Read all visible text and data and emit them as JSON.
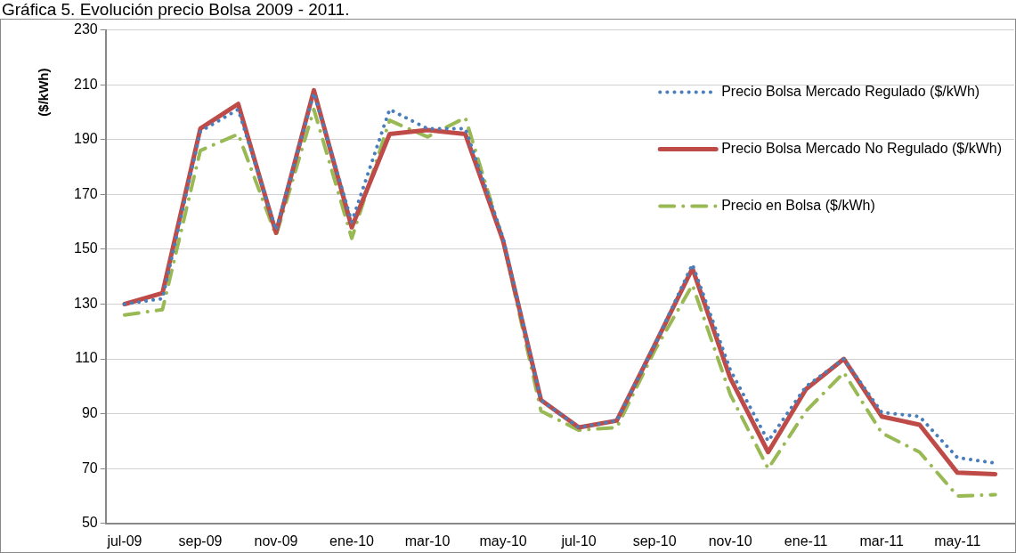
{
  "chart_data": {
    "type": "line",
    "title": "Gráfica 5. Evolución precio Bolsa 2009 - 2011.",
    "ylabel": "($/kWh)",
    "categories": [
      "jul-09",
      null,
      "sep-09",
      null,
      "nov-09",
      null,
      "ene-10",
      null,
      "mar-10",
      null,
      "may-10",
      null,
      "jul-10",
      null,
      "sep-10",
      null,
      "nov-10",
      null,
      "ene-11",
      null,
      "mar-11",
      null,
      "may-11",
      null
    ],
    "series": [
      {
        "name": "Precio Bolsa Mercado Regulado ($/kWh)",
        "color": "#4a7ebb",
        "line_style": "dotted",
        "values": [
          130,
          132,
          193,
          201,
          157,
          207,
          160,
          201,
          194,
          194,
          154,
          95,
          85,
          87.5,
          115,
          144.5,
          106,
          80,
          100,
          110,
          90.5,
          89,
          74,
          72
        ]
      },
      {
        "name": "Precio Bolsa Mercado No Regulado ($/kWh)",
        "color": "#be4b48",
        "line_style": "solid",
        "values": [
          130,
          134,
          194,
          203,
          156,
          208,
          158,
          192,
          193.5,
          192,
          153,
          95,
          85,
          87.5,
          115,
          143,
          103,
          76,
          99,
          110,
          89,
          86,
          68.5,
          68
        ]
      },
      {
        "name": "Precio en Bolsa ($/kWh)",
        "color": "#98b954",
        "line_style": "dashdot",
        "values": [
          126,
          128,
          186,
          192,
          155,
          201,
          154,
          197,
          191,
          198,
          153,
          91,
          84,
          85,
          113,
          137,
          97,
          70,
          91,
          105,
          83,
          76,
          60,
          60.5
        ]
      }
    ],
    "ylim": [
      50,
      230
    ],
    "yticks": [
      50,
      70,
      90,
      110,
      130,
      150,
      170,
      190,
      210,
      230
    ],
    "grid": "y",
    "legend": "top right",
    "marker": "none"
  }
}
